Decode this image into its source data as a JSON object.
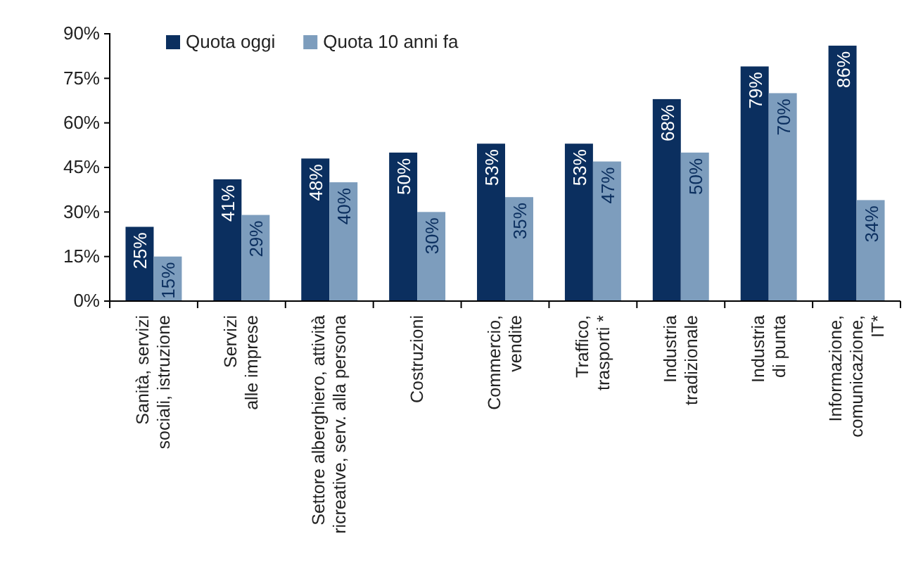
{
  "chart_data": {
    "type": "bar",
    "categories": [
      "Sanità, servizi\nsociali, istruzione",
      "Servizi\nalle imprese",
      "Settore alberghiero, attività\nricreative, serv. alla persona",
      "Costruzioni",
      "Commercio,\nvendite",
      "Traffico,\ntrasporti *",
      "Industria\ntradizionale",
      "Industria\ndi punta",
      "Informazione,\ncomunicazione,\nIT*"
    ],
    "series": [
      {
        "name": "Quota oggi",
        "color": "#0b2f5f",
        "values": [
          25,
          41,
          48,
          50,
          53,
          53,
          68,
          79,
          86
        ],
        "value_labels": [
          "25%",
          "41%",
          "48%",
          "50%",
          "53%",
          "53%",
          "68%",
          "79%",
          "86%"
        ]
      },
      {
        "name": "Quota 10 anni fa",
        "color": "#7d9dbd",
        "values": [
          15,
          29,
          40,
          30,
          35,
          47,
          50,
          70,
          34
        ],
        "value_labels": [
          "15%",
          "29%",
          "40%",
          "30%",
          "35%",
          "47%",
          "50%",
          "70%",
          "34%"
        ]
      }
    ],
    "ylim": [
      0,
      90
    ],
    "yticks": [
      {
        "value": 0,
        "label": "0%"
      },
      {
        "value": 15,
        "label": "15%"
      },
      {
        "value": 30,
        "label": "30%"
      },
      {
        "value": 45,
        "label": "45%"
      },
      {
        "value": 60,
        "label": "60%"
      },
      {
        "value": 75,
        "label": "75%"
      },
      {
        "value": 90,
        "label": "90%"
      }
    ],
    "legend": "top left",
    "grid": false
  }
}
